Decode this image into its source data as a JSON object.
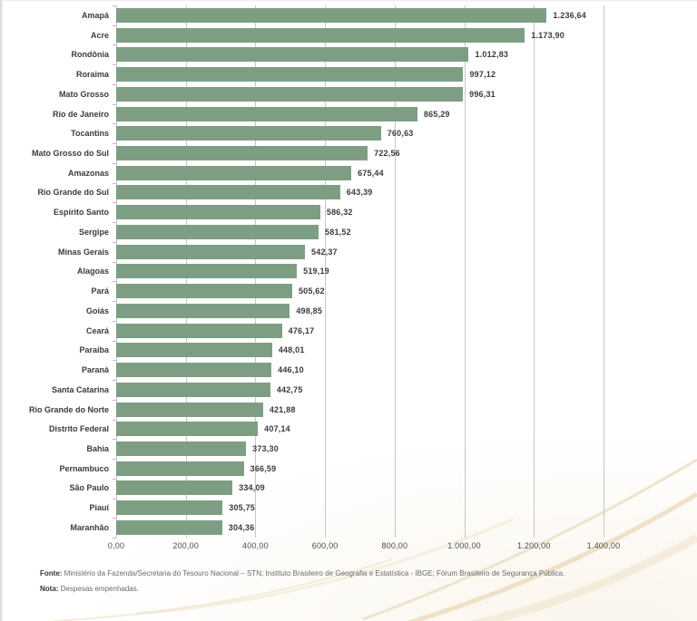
{
  "footer": {
    "fonte_label": "Fonte:",
    "fonte_text": "Ministério da Fazenda/Secretaria do Tesouro Nacional – STN; Instituto Brasileiro de Geografia e Estatística - IBGE; Fórum Brasileiro de Segurança Pública.",
    "nota_label": "Nota:",
    "nota_text": "Despesas empenhadas."
  },
  "chart_data": {
    "type": "bar",
    "orientation": "horizontal",
    "title": "",
    "xlabel": "",
    "ylabel": "",
    "xlim": [
      0,
      1400
    ],
    "grid": true,
    "legend_position": "none",
    "bar_color": "#7E9E84",
    "gridline_color": "#c6c6c6",
    "categories": [
      "Amapá",
      "Acre",
      "Rondônia",
      "Roraima",
      "Mato Grosso",
      "Rio de Janeiro",
      "Tocantins",
      "Mato Grosso do Sul",
      "Amazonas",
      "Rio Grande do Sul",
      "Espírito Santo",
      "Sergipe",
      "Minas Gerais",
      "Alagoas",
      "Pará",
      "Goiás",
      "Ceará",
      "Paraíba",
      "Paraná",
      "Santa Catarina",
      "Rio Grande do Norte",
      "Distrito Federal",
      "Bahia",
      "Pernambuco",
      "São Paulo",
      "Piauí",
      "Maranhão"
    ],
    "values": [
      1236.64,
      1173.9,
      1012.83,
      997.12,
      996.31,
      865.29,
      760.63,
      722.56,
      675.44,
      643.39,
      586.32,
      581.52,
      542.37,
      519.19,
      505.62,
      498.85,
      476.17,
      448.01,
      446.1,
      442.75,
      421.88,
      407.14,
      373.3,
      366.59,
      334.09,
      305.75,
      304.36
    ],
    "value_labels": [
      "1.236,64",
      "1.173,90",
      "1.012,83",
      "997,12",
      "996,31",
      "865,29",
      "760,63",
      "722,56",
      "675,44",
      "643,39",
      "586,32",
      "581,52",
      "542,37",
      "519,19",
      "505,62",
      "498,85",
      "476,17",
      "448,01",
      "446,10",
      "442,75",
      "421,88",
      "407,14",
      "373,30",
      "366,59",
      "334,09",
      "305,75",
      "304,36"
    ],
    "x_ticks": [
      {
        "value": 0,
        "label": "0,00"
      },
      {
        "value": 200,
        "label": "200,00"
      },
      {
        "value": 400,
        "label": "400,00"
      },
      {
        "value": 600,
        "label": "600,00"
      },
      {
        "value": 800,
        "label": "800,00"
      },
      {
        "value": 1000,
        "label": "1.000,00"
      },
      {
        "value": 1200,
        "label": "1.200,00"
      },
      {
        "value": 1400,
        "label": "1.400,00"
      }
    ]
  }
}
